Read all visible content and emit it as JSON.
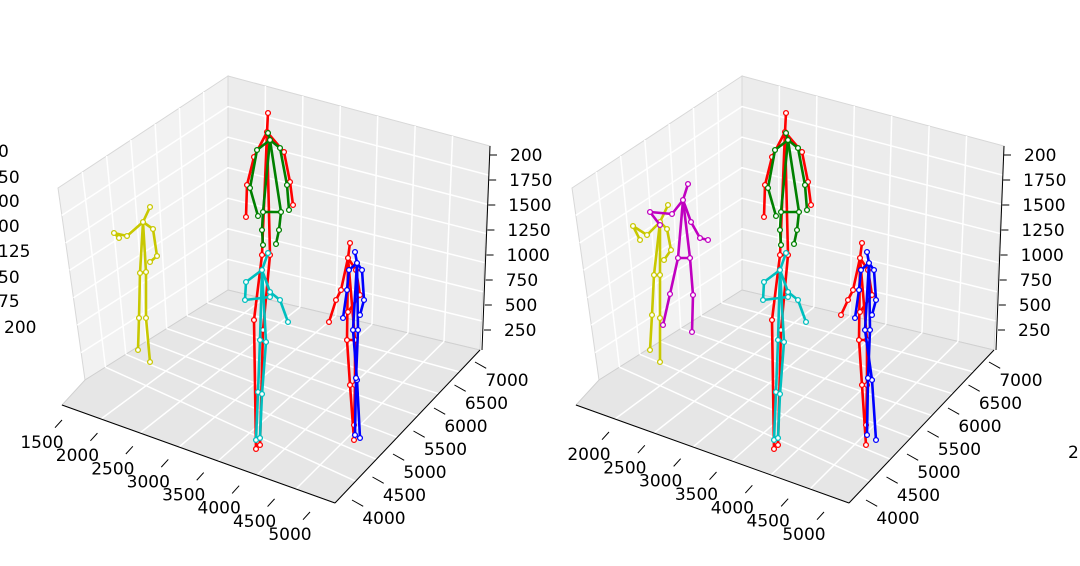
{
  "chart_data": [
    {
      "type": "3d-scatter-skeleton",
      "panel": "left",
      "x_ticks": [
        "1500",
        "2000",
        "2500",
        "3000",
        "3500",
        "4000",
        "4500",
        "5000"
      ],
      "y_ticks": [
        "4000",
        "4500",
        "5000",
        "5500",
        "6000",
        "6500",
        "7000"
      ],
      "z_ticks": [
        "250",
        "500",
        "750",
        "1000",
        "1250",
        "1500",
        "1750",
        "2000"
      ],
      "z_ticks_right_visible": [
        "250",
        "500",
        "750",
        "1000",
        "1250",
        "1500",
        "1750",
        "200"
      ],
      "z_ticks_left_visible": [
        "50",
        "75",
        "50",
        "125",
        "00",
        "00",
        "50",
        "0"
      ],
      "grid": true,
      "legend": "none",
      "skeletons": [
        {
          "color": "#c8c800",
          "joints": 14
        },
        {
          "color": "#ff0000",
          "joints": 14
        },
        {
          "color": "#008000",
          "joints": 14
        },
        {
          "color": "#00bfbf",
          "joints": 14
        },
        {
          "color": "#ff0000",
          "joints": 14
        },
        {
          "color": "#0000ff",
          "joints": 14
        }
      ]
    },
    {
      "type": "3d-scatter-skeleton",
      "panel": "middle",
      "x_ticks": [
        "2000",
        "2500",
        "3000",
        "3500",
        "4000",
        "4500",
        "5000"
      ],
      "y_ticks": [
        "4000",
        "4500",
        "5000",
        "5500",
        "6000",
        "6500",
        "7000"
      ],
      "z_ticks_right_visible": [
        "250",
        "500",
        "750",
        "1000",
        "1250",
        "1500",
        "1750",
        "200"
      ],
      "grid": true,
      "legend": "none",
      "skeletons": [
        {
          "color": "#c8c800",
          "joints": 14
        },
        {
          "color": "#c000c0",
          "joints": 14
        },
        {
          "color": "#ff0000",
          "joints": 14
        },
        {
          "color": "#008000",
          "joints": 14
        },
        {
          "color": "#00bfbf",
          "joints": 14
        },
        {
          "color": "#ff0000",
          "joints": 14
        },
        {
          "color": "#0000ff",
          "joints": 14
        }
      ]
    }
  ],
  "figure": {
    "right_edge_fragment": "2"
  }
}
